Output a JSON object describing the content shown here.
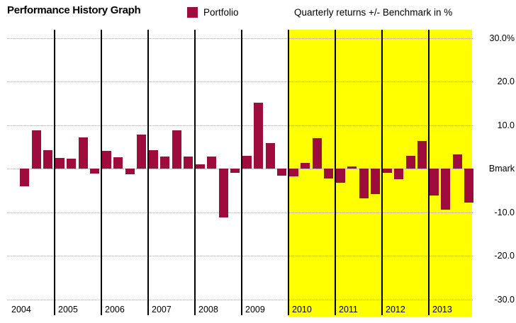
{
  "header": {
    "title": "Performance History Graph",
    "legend_label": "Portfolio",
    "note": "Quarterly returns +/- Benchmark in %"
  },
  "colors": {
    "bar": "#9E0C3D",
    "highlight": "#FFFF00",
    "gridline": "#A8A8A8",
    "year_line": "#000000"
  },
  "chart_data": {
    "type": "bar",
    "title": "Performance History Graph",
    "series_name": "Portfolio",
    "ylabel": "Quarterly returns +/- Benchmark in %",
    "ylim": [
      -31.5,
      31.5
    ],
    "grid": "dotted horizontal lines at every 10%",
    "legend_position": "top",
    "y_ticks": [
      {
        "value": 30,
        "label": "30.0%"
      },
      {
        "value": 20,
        "label": "20.0"
      },
      {
        "value": 10,
        "label": "10.0"
      },
      {
        "value": 0,
        "label": "Bmark"
      },
      {
        "value": -10,
        "label": "-10.0"
      },
      {
        "value": -20,
        "label": "-20.0"
      },
      {
        "value": -30,
        "label": "-30.0"
      }
    ],
    "years": [
      {
        "year": "2004",
        "quarters": [
          0,
          -4.0,
          8.7,
          4.3
        ]
      },
      {
        "year": "2005",
        "quarters": [
          2.4,
          2.2,
          7.2,
          -1.1
        ]
      },
      {
        "year": "2006",
        "quarters": [
          4.0,
          2.6,
          -1.3,
          7.8
        ]
      },
      {
        "year": "2007",
        "quarters": [
          4.3,
          2.7,
          8.8,
          2.7
        ]
      },
      {
        "year": "2008",
        "quarters": [
          1.0,
          2.7,
          -11.2,
          -1.0
        ]
      },
      {
        "year": "2009",
        "quarters": [
          3.0,
          15.2,
          5.9,
          -1.6
        ]
      },
      {
        "year": "2010",
        "quarters": [
          -1.8,
          1.3,
          7.0,
          -2.2
        ]
      },
      {
        "year": "2011",
        "quarters": [
          -3.2,
          0.5,
          -6.9,
          -5.8
        ]
      },
      {
        "year": "2012",
        "quarters": [
          -0.9,
          -2.4,
          2.9,
          6.4
        ]
      },
      {
        "year": "2013",
        "quarters": [
          -6.2,
          -9.4,
          3.2,
          -7.8
        ]
      }
    ],
    "highlight_years": [
      "2010",
      "2011",
      "2012",
      "2013"
    ]
  }
}
